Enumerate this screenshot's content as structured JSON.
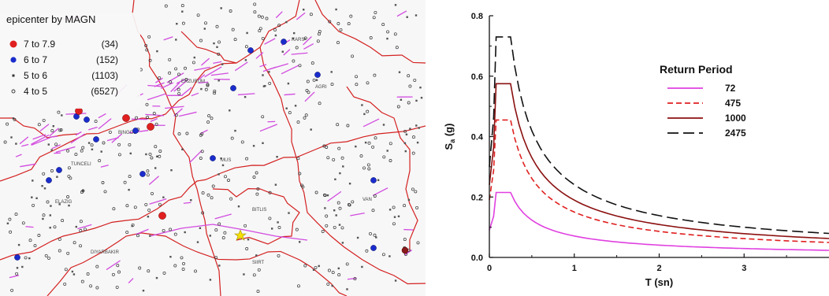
{
  "map": {
    "title": "epicenter by MAGN",
    "legend": [
      {
        "label": "7 to 7.9",
        "count": "(34)",
        "color": "#e02020",
        "marker": "large-dot"
      },
      {
        "label": "6 to 7",
        "count": "(152)",
        "color": "#1a2ccc",
        "marker": "dot"
      },
      {
        "label": "5 to 6",
        "count": "(1103)",
        "color": "#333333",
        "marker": "small-square"
      },
      {
        "label": "4 to 5",
        "count": "(6527)",
        "color": "#333333",
        "marker": "small-circle"
      }
    ],
    "places": [
      "ERZURUM",
      "TUNCELI",
      "BITLIS",
      "ELAZIG",
      "DIYARBAKIR",
      "KARS",
      "AGRI",
      "VAN",
      "MUS",
      "SIIRT",
      "BINGOL"
    ],
    "colors": {
      "borders": "#d42020",
      "faults": "#d24be0",
      "star": "#f5e000"
    }
  },
  "chart_data": {
    "type": "line",
    "xlabel": "T (sn)",
    "ylabel": "Sa (g)",
    "ylabel_main": "S",
    "ylabel_sub": "a",
    "ylabel_rest": " (g)",
    "xlim": [
      0,
      4.0
    ],
    "ylim": [
      0,
      0.8
    ],
    "xticks": [
      "0",
      "1",
      "2",
      "3"
    ],
    "yticks": [
      "0.0",
      "0.2",
      "0.4",
      "0.6",
      "0.8"
    ],
    "legend_title": "Return Period",
    "corner_periods": {
      "T0": 0.05,
      "TA": 0.08,
      "TB": 0.25
    },
    "series": [
      {
        "name": "72",
        "plateau": 0.215,
        "pga": 0.09,
        "color": "#e040e0",
        "dash": ""
      },
      {
        "name": "475",
        "plateau": 0.455,
        "pga": 0.19,
        "color": "#e02020",
        "dash": "7,4"
      },
      {
        "name": "1000",
        "plateau": 0.575,
        "pga": 0.24,
        "color": "#8b1010",
        "dash": ""
      },
      {
        "name": "2475",
        "plateau": 0.73,
        "pga": 0.3,
        "color": "#111111",
        "dash": "14,6"
      }
    ]
  }
}
